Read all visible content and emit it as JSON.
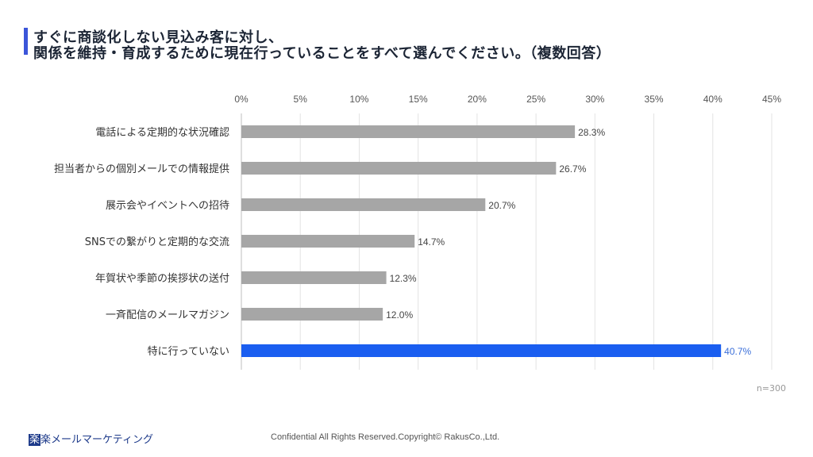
{
  "title": {
    "line1": "すぐに商談化しない見込み客に対し、",
    "line2": "関係を維持・育成するために現在行っていることをすべて選んでください。（複数回答）"
  },
  "chart_data": {
    "type": "bar",
    "orientation": "horizontal",
    "categories": [
      "電話による定期的な状況確認",
      "担当者からの個別メールでの情報提供",
      "展示会やイベントへの招待",
      "SNSでの繋がりと定期的な交流",
      "年賀状や季節の挨拶状の送付",
      "一斉配信のメールマガジン",
      "特に行っていない"
    ],
    "values": [
      28.3,
      26.7,
      20.7,
      14.7,
      12.3,
      12.0,
      40.7
    ],
    "value_labels": [
      "28.3%",
      "26.7%",
      "20.7%",
      "14.7%",
      "12.3%",
      "12.0%",
      "40.7%"
    ],
    "xlim": [
      0,
      45
    ],
    "ticks": [
      "0%",
      "5%",
      "10%",
      "15%",
      "20%",
      "25%",
      "30%",
      "35%",
      "40%",
      "45%"
    ],
    "axis_position": "top",
    "grid": true,
    "colors": {
      "default": "#a6a6a6",
      "highlight": "#1a5ef0",
      "highlight_label": "#3b6fd9",
      "label": "#444444"
    },
    "highlight_index": 6
  },
  "note": "n=300",
  "footer": {
    "logo_box": "楽",
    "logo_rest": "楽メールマーケティング",
    "copyright": "Confidential All Rights Reserved.Copyright© RakusCo.,Ltd."
  }
}
